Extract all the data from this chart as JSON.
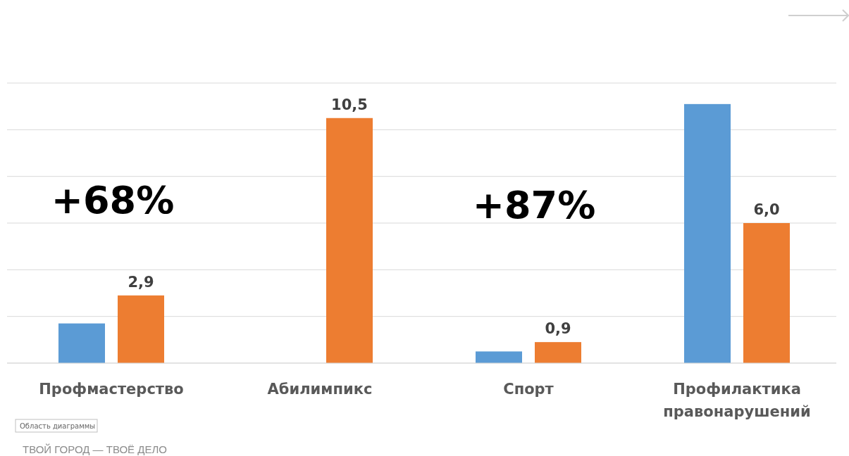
{
  "chart_data": {
    "type": "bar",
    "categories": [
      "Профмастерство",
      "Абилимпикс",
      "Спорт",
      "Профилактика правонарушений"
    ],
    "series": [
      {
        "color": "#5b9bd5",
        "values": [
          1.7,
          null,
          0.5,
          11.1
        ]
      },
      {
        "color": "#ed7d31",
        "values": [
          2.9,
          10.5,
          0.9,
          6.0
        ],
        "value_labels": [
          "2,9",
          "10,5",
          "0,9",
          "6,0"
        ]
      }
    ],
    "ylim": [
      0,
      12
    ],
    "yticks": [
      {
        "value": 0,
        "label": null
      },
      {
        "value": 2,
        "label": null
      },
      {
        "value": 4,
        "label": null
      },
      {
        "value": 6,
        "label": null
      },
      {
        "value": 8,
        "label": null
      },
      {
        "value": 10,
        "label": null
      },
      {
        "value": 12,
        "label": null
      }
    ],
    "grid": "y",
    "tick_labels": "x",
    "annotations": [
      "+68%",
      "+87%",
      "Область диаграммы",
      "ТВОЙ ГОРОД — ТВОЁ ДЕЛО"
    ]
  }
}
